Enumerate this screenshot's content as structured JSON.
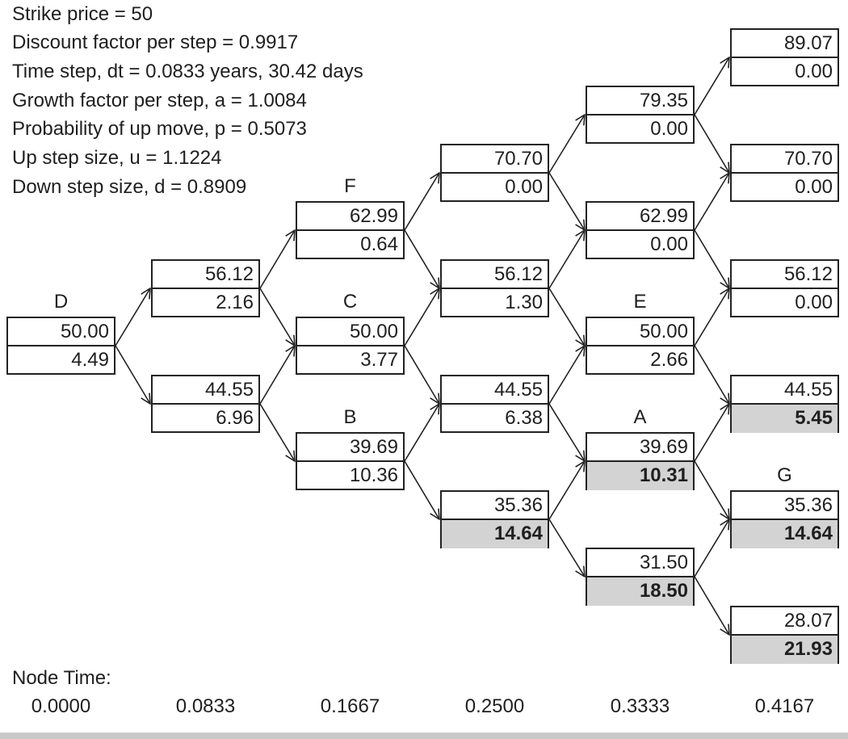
{
  "parameters": [
    "Strike price = 50",
    "Discount factor per step = 0.9917",
    "Time step, dt = 0.0833 years, 30.42 days",
    "Growth factor per step, a = 1.0084",
    "Probability of up move, p = 0.5073",
    "Up step size, u = 1.1224",
    "Down step size, d = 0.8909"
  ],
  "node_time_label": "Node Time:",
  "node_times": [
    "0.0000",
    "0.0833",
    "0.1667",
    "0.2500",
    "0.3333",
    "0.4167"
  ],
  "tree": [
    [
      {
        "stock": "50.00",
        "option": "4.49",
        "label": "D",
        "exercised": false
      }
    ],
    [
      {
        "stock": "56.12",
        "option": "2.16",
        "label": "",
        "exercised": false
      },
      {
        "stock": "44.55",
        "option": "6.96",
        "label": "",
        "exercised": false
      }
    ],
    [
      {
        "stock": "62.99",
        "option": "0.64",
        "label": "F",
        "exercised": false
      },
      {
        "stock": "50.00",
        "option": "3.77",
        "label": "C",
        "exercised": false
      },
      {
        "stock": "39.69",
        "option": "10.36",
        "label": "B",
        "exercised": false
      }
    ],
    [
      {
        "stock": "70.70",
        "option": "0.00",
        "label": "",
        "exercised": false
      },
      {
        "stock": "56.12",
        "option": "1.30",
        "label": "",
        "exercised": false
      },
      {
        "stock": "44.55",
        "option": "6.38",
        "label": "",
        "exercised": false
      },
      {
        "stock": "35.36",
        "option": "14.64",
        "label": "",
        "exercised": true
      }
    ],
    [
      {
        "stock": "79.35",
        "option": "0.00",
        "label": "",
        "exercised": false
      },
      {
        "stock": "62.99",
        "option": "0.00",
        "label": "",
        "exercised": false
      },
      {
        "stock": "50.00",
        "option": "2.66",
        "label": "E",
        "exercised": false
      },
      {
        "stock": "39.69",
        "option": "10.31",
        "label": "A",
        "exercised": true
      },
      {
        "stock": "31.50",
        "option": "18.50",
        "label": "",
        "exercised": true
      }
    ],
    [
      {
        "stock": "89.07",
        "option": "0.00",
        "label": "",
        "exercised": false
      },
      {
        "stock": "70.70",
        "option": "0.00",
        "label": "",
        "exercised": false
      },
      {
        "stock": "56.12",
        "option": "0.00",
        "label": "",
        "exercised": false
      },
      {
        "stock": "44.55",
        "option": "5.45",
        "label": "",
        "exercised": true
      },
      {
        "stock": "35.36",
        "option": "14.64",
        "label": "G",
        "exercised": true
      },
      {
        "stock": "28.07",
        "option": "21.93",
        "label": "",
        "exercised": true
      }
    ]
  ]
}
